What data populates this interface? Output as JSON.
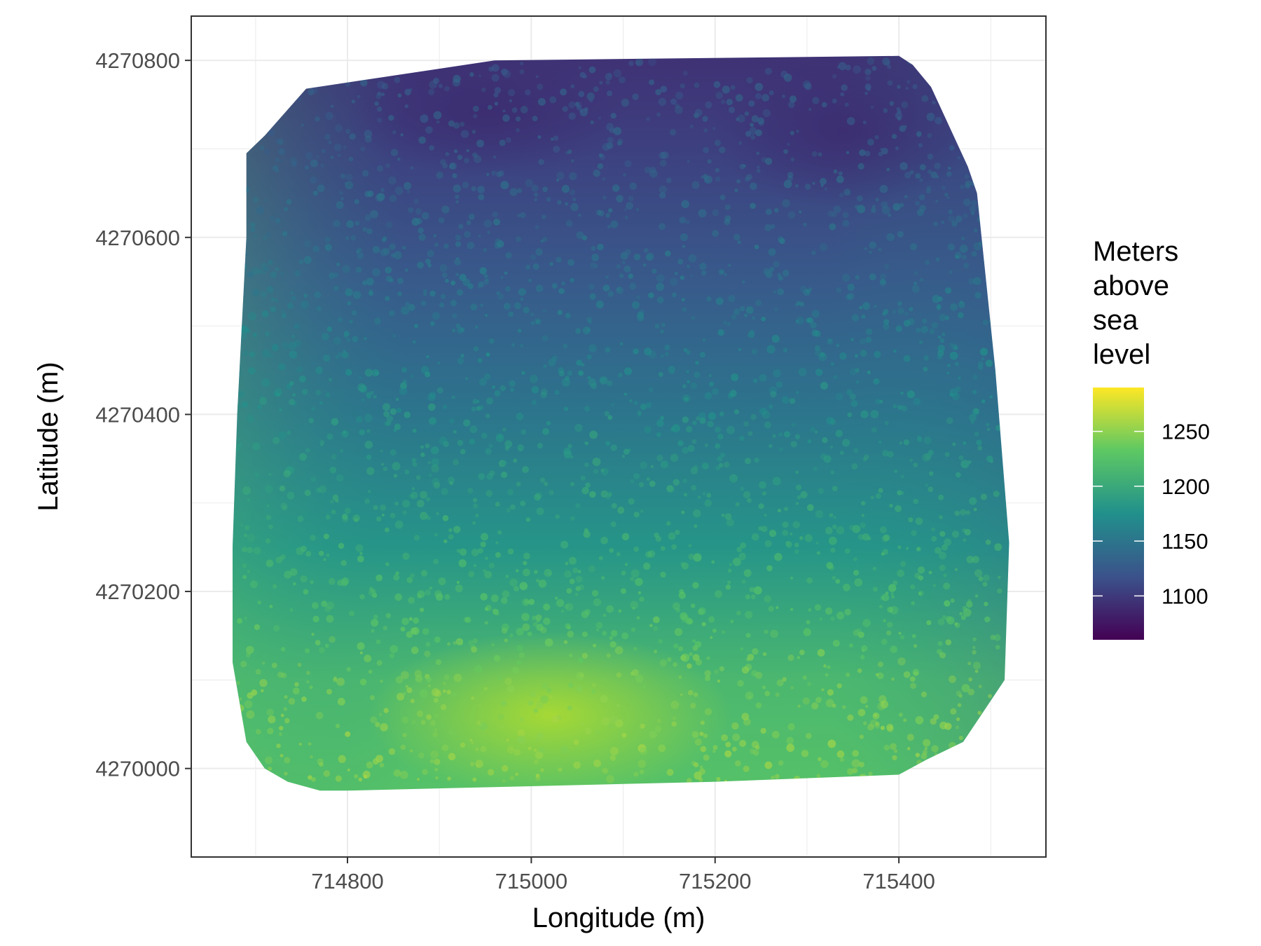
{
  "chart_data": {
    "type": "heatmap",
    "title": "",
    "xlabel": "Longitude (m)",
    "ylabel": "Latitude (m)",
    "xlim": [
      714630,
      715560
    ],
    "ylim": [
      4269900,
      4270850
    ],
    "x_ticks": [
      714800,
      715000,
      715200,
      715400
    ],
    "y_ticks": [
      4270000,
      4270200,
      4270400,
      4270600,
      4270800
    ],
    "grid": true,
    "colorscale": "viridis",
    "colors": [
      "#440154",
      "#3b528b",
      "#21908c",
      "#5dc863",
      "#fde725"
    ],
    "legend": {
      "title_lines": [
        "Meters",
        "above",
        "sea",
        "level"
      ],
      "placement": "right",
      "range": [
        1060,
        1290
      ],
      "ticks": [
        1100,
        1150,
        1200,
        1250
      ]
    },
    "footprint": [
      [
        714690,
        4270695
      ],
      [
        714710,
        4270715
      ],
      [
        714755,
        4270768
      ],
      [
        714960,
        4270800
      ],
      [
        715400,
        4270805
      ],
      [
        715415,
        4270795
      ],
      [
        715435,
        4270770
      ],
      [
        715475,
        4270680
      ],
      [
        715485,
        4270650
      ],
      [
        715495,
        4270550
      ],
      [
        715505,
        4270450
      ],
      [
        715520,
        4270255
      ],
      [
        715515,
        4270100
      ],
      [
        715470,
        4270030
      ],
      [
        715430,
        4270010
      ],
      [
        715400,
        4269993
      ],
      [
        715200,
        4269985
      ],
      [
        714800,
        4269975
      ],
      [
        714770,
        4269975
      ],
      [
        714735,
        4269985
      ],
      [
        714710,
        4270000
      ],
      [
        714690,
        4270030
      ],
      [
        714675,
        4270120
      ],
      [
        714675,
        4270250
      ],
      [
        714680,
        4270400
      ],
      [
        714690,
        4270600
      ]
    ],
    "surface_trend": [
      {
        "y": 4269980,
        "z": 1225
      },
      {
        "y": 4270100,
        "z": 1215
      },
      {
        "y": 4270250,
        "z": 1180
      },
      {
        "y": 4270400,
        "z": 1150
      },
      {
        "y": 4270550,
        "z": 1125
      },
      {
        "y": 4270700,
        "z": 1105
      },
      {
        "y": 4270800,
        "z": 1095
      }
    ]
  }
}
